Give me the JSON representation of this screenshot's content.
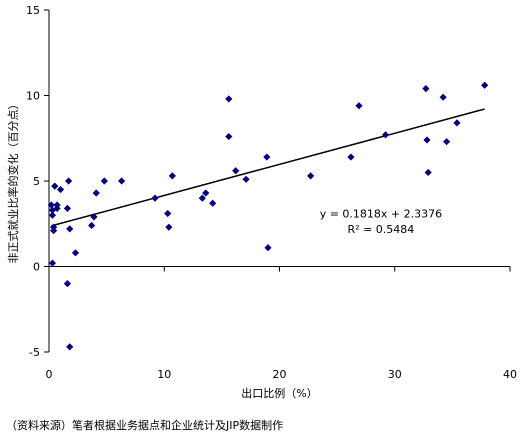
{
  "chart_data": {
    "type": "scatter",
    "title": "",
    "xlabel": "出口比例（%）",
    "ylabel": "非正式就业比率的变化（百分点）",
    "xlim": [
      0,
      40
    ],
    "ylim": [
      -5,
      15
    ],
    "xticks": [
      0,
      10,
      20,
      30,
      40
    ],
    "yticks": [
      -5,
      0,
      5,
      10,
      15
    ],
    "tick_labels": {
      "x": [
        "0",
        "10",
        "20",
        "30",
        "40"
      ],
      "y": [
        "-5",
        "0",
        "5",
        "10",
        "15"
      ]
    },
    "grid": false,
    "marker_color": "#00007f",
    "line_color": "#000000",
    "points": [
      {
        "x": 0.2,
        "y": 3.6
      },
      {
        "x": 0.3,
        "y": 3.3
      },
      {
        "x": 0.3,
        "y": 3.0
      },
      {
        "x": 0.4,
        "y": 2.3
      },
      {
        "x": 0.4,
        "y": 2.1
      },
      {
        "x": 0.3,
        "y": 0.2
      },
      {
        "x": 0.5,
        "y": 4.7
      },
      {
        "x": 0.7,
        "y": 3.6
      },
      {
        "x": 0.7,
        "y": 3.4
      },
      {
        "x": 1.0,
        "y": 4.5
      },
      {
        "x": 1.7,
        "y": 5.0
      },
      {
        "x": 1.6,
        "y": 3.4
      },
      {
        "x": 1.8,
        "y": 2.2
      },
      {
        "x": 2.3,
        "y": 0.8
      },
      {
        "x": 1.6,
        "y": -1.0
      },
      {
        "x": 1.8,
        "y": -4.7
      },
      {
        "x": 3.7,
        "y": 2.4
      },
      {
        "x": 3.9,
        "y": 2.9
      },
      {
        "x": 4.1,
        "y": 4.3
      },
      {
        "x": 4.8,
        "y": 5.0
      },
      {
        "x": 6.3,
        "y": 5.0
      },
      {
        "x": 9.2,
        "y": 4.0
      },
      {
        "x": 10.3,
        "y": 3.1
      },
      {
        "x": 10.4,
        "y": 2.3
      },
      {
        "x": 10.7,
        "y": 5.3
      },
      {
        "x": 13.3,
        "y": 4.0
      },
      {
        "x": 13.6,
        "y": 4.3
      },
      {
        "x": 14.2,
        "y": 3.7
      },
      {
        "x": 15.6,
        "y": 9.8
      },
      {
        "x": 15.6,
        "y": 7.6
      },
      {
        "x": 16.2,
        "y": 5.6
      },
      {
        "x": 17.1,
        "y": 5.1
      },
      {
        "x": 18.9,
        "y": 6.4
      },
      {
        "x": 19.0,
        "y": 1.1
      },
      {
        "x": 22.7,
        "y": 5.3
      },
      {
        "x": 26.2,
        "y": 6.4
      },
      {
        "x": 26.9,
        "y": 9.4
      },
      {
        "x": 29.2,
        "y": 7.7
      },
      {
        "x": 32.7,
        "y": 10.4
      },
      {
        "x": 32.8,
        "y": 7.4
      },
      {
        "x": 32.9,
        "y": 5.5
      },
      {
        "x": 34.2,
        "y": 9.9
      },
      {
        "x": 34.5,
        "y": 7.3
      },
      {
        "x": 35.4,
        "y": 8.4
      },
      {
        "x": 37.8,
        "y": 10.6
      }
    ],
    "trendline": {
      "slope": 0.1818,
      "intercept": 2.3376,
      "x_range": [
        0.2,
        37.8
      ]
    },
    "annotations": [
      "y = 0.1818x + 2.3376",
      "R² = 0.5484"
    ]
  },
  "footer": {
    "source_note": "（资料来源）笔者根据业务据点和企业统计及JIP数据制作"
  }
}
